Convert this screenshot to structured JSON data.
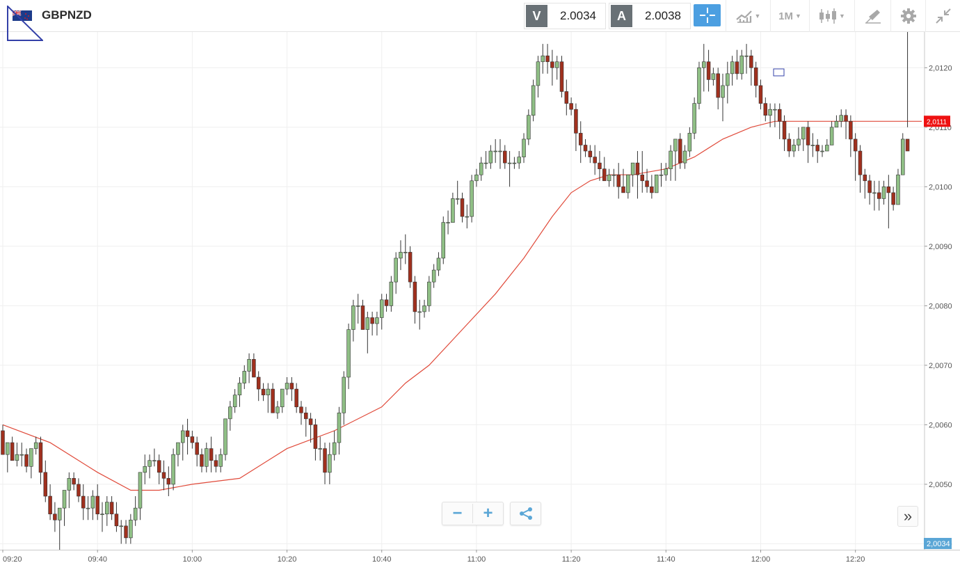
{
  "header": {
    "symbol": "GBPNZD",
    "sell_label": "V",
    "sell_price": "2.0034",
    "buy_label": "A",
    "buy_price": "2.0038",
    "timeframe": "1M",
    "icons": [
      "flag-icon",
      "crosshair-icon",
      "indicator-icon",
      "candlestick-icon",
      "drawing-icon",
      "gear-icon",
      "minimize-icon"
    ]
  },
  "colors": {
    "bull": "#8fbf85",
    "bear": "#a0301e",
    "wick": "#333333",
    "ma": "#e04a3a",
    "current_price_tag": "#ee1111",
    "bid_tag": "#5aa6d6",
    "grid": "#efefef",
    "accent": "#4c9fe1"
  },
  "controls": {
    "zoom_out": "−",
    "zoom_in": "+",
    "share_icon": "share-icon",
    "scroll_end": "»"
  },
  "chart_data": {
    "type": "candlestick",
    "interval": "1M",
    "xlabel": "",
    "ylabel": "",
    "ylim": [
      2.0039,
      2.0126
    ],
    "y_ticks": [
      "2,0040",
      "2,0050",
      "2,0060",
      "2,0070",
      "2,0080",
      "2,0090",
      "2,0100",
      "2,0110",
      "2,0120"
    ],
    "y_tick_values": [
      2.004,
      2.005,
      2.006,
      2.007,
      2.008,
      2.009,
      2.01,
      2.011,
      2.012
    ],
    "x_ticks": [
      "09:20",
      "09:40",
      "10:00",
      "10:20",
      "10:40",
      "11:00",
      "11:20",
      "11:40",
      "12:00",
      "12:20"
    ],
    "x_range": [
      "09:20",
      "12:34"
    ],
    "x_tick_minutes": [
      0,
      20,
      40,
      60,
      80,
      100,
      120,
      140,
      160,
      180
    ],
    "x_range_minutes": [
      0,
      194
    ],
    "current_price_label": "2,0111",
    "current_price": 2.0111,
    "bid_label": "2,0034",
    "bid_value": 2.0034,
    "grid": true,
    "series": [
      {
        "type": "ohlc",
        "o": [
          2.0059,
          2.0055,
          2.0057,
          2.0054,
          2.0055,
          2.0055,
          2.0053,
          2.0056,
          2.0057,
          2.0052,
          2.0048,
          2.0045,
          2.0044,
          2.0046,
          2.0049,
          2.0051,
          2.005,
          2.0048,
          2.0046,
          2.0046,
          2.0048,
          2.0045,
          2.0045,
          2.0047,
          2.0045,
          2.0043,
          2.0043,
          2.0041,
          2.0044,
          2.0046,
          2.0052,
          2.0053,
          2.0054,
          2.0054,
          2.0052,
          2.0051,
          2.005,
          2.0055,
          2.0057,
          2.0059,
          2.0058,
          2.0057,
          2.0055,
          2.0053,
          2.0056,
          2.0054,
          2.0053,
          2.0055,
          2.0061,
          2.0063,
          2.0065,
          2.0067,
          2.0069,
          2.0071,
          2.0068,
          2.0066,
          2.0065,
          2.0066,
          2.0062,
          2.0063,
          2.0066,
          2.0067,
          2.0066,
          2.0063,
          2.0062,
          2.0061,
          2.006,
          2.0056,
          2.0056,
          2.0052,
          2.0055,
          2.0057,
          2.0062,
          2.0068,
          2.0076,
          2.008,
          2.008,
          2.0076,
          2.0078,
          2.0077,
          2.0078,
          2.0081,
          2.008,
          2.0084,
          2.0088,
          2.0089,
          2.0089,
          2.0084,
          2.0079,
          2.0079,
          2.008,
          2.0084,
          2.0086,
          2.0088,
          2.0094,
          2.0094,
          2.0098,
          2.0098,
          2.0095,
          2.0095,
          2.0101,
          2.0102,
          2.0104,
          2.0104,
          2.0106,
          2.0106,
          2.0106,
          2.0104,
          2.0104,
          2.0104,
          2.0105,
          2.0108,
          2.0112,
          2.0117,
          2.0121,
          2.0122,
          2.0121,
          2.012,
          2.0121,
          2.0116,
          2.0114,
          2.0113,
          2.0109,
          2.0107,
          2.0106,
          2.0105,
          2.0104,
          2.0103,
          2.0101,
          2.0102,
          2.0102,
          2.01,
          2.0099,
          2.0102,
          2.0104,
          2.0102,
          2.0101,
          2.01,
          2.0099,
          2.0102,
          2.0102,
          2.0103,
          2.0106,
          2.0108,
          2.0104,
          2.0106,
          2.0109,
          2.0114,
          2.012,
          2.0121,
          2.0118,
          2.0119,
          2.0115,
          2.0117,
          2.0119,
          2.0121,
          2.0119,
          2.0122,
          2.0122,
          2.012,
          2.0117,
          2.0114,
          2.0112,
          2.0113,
          2.0113,
          2.0111,
          2.0108,
          2.0106,
          2.0107,
          2.0108,
          2.011,
          2.0107,
          2.0107,
          2.0106,
          2.0106,
          2.0107,
          2.011,
          2.0111,
          2.0112,
          2.0111,
          2.0108,
          2.0106,
          2.0102,
          2.0101,
          2.0099,
          2.0099,
          2.0098,
          2.01,
          2.0099,
          2.0097,
          2.0102,
          2.0108
        ],
        "h": [
          2.006,
          2.0057,
          2.0058,
          2.0057,
          2.0057,
          2.0056,
          2.0055,
          2.0058,
          2.0058,
          2.0054,
          2.005,
          2.0047,
          2.0046,
          2.0049,
          2.0052,
          2.0052,
          2.0051,
          2.005,
          2.0048,
          2.0049,
          2.005,
          2.0047,
          2.0048,
          2.0048,
          2.0047,
          2.0044,
          2.0044,
          2.0045,
          2.0048,
          2.0052,
          2.0055,
          2.0055,
          2.0056,
          2.0055,
          2.0054,
          2.0053,
          2.0056,
          2.0057,
          2.006,
          2.0061,
          2.0059,
          2.0058,
          2.0056,
          2.0057,
          2.0058,
          2.0055,
          2.0056,
          2.0061,
          2.0064,
          2.0066,
          2.0068,
          2.007,
          2.0072,
          2.0072,
          2.0069,
          2.0067,
          2.0067,
          2.0067,
          2.0064,
          2.0066,
          2.0068,
          2.0068,
          2.0067,
          2.0064,
          2.0063,
          2.0062,
          2.0061,
          2.0058,
          2.0057,
          2.0057,
          2.0059,
          2.0063,
          2.0069,
          2.0077,
          2.0081,
          2.0082,
          2.0081,
          2.0079,
          2.0079,
          2.0079,
          2.0082,
          2.0082,
          2.0085,
          2.0089,
          2.0091,
          2.0092,
          2.009,
          2.0085,
          2.0081,
          2.0081,
          2.0085,
          2.0087,
          2.0089,
          2.0095,
          2.0096,
          2.0099,
          2.0101,
          2.0099,
          2.0097,
          2.0102,
          2.0103,
          2.0105,
          2.0106,
          2.0107,
          2.0108,
          2.0108,
          2.0107,
          2.0106,
          2.0105,
          2.0106,
          2.0109,
          2.0113,
          2.0118,
          2.0122,
          2.0124,
          2.0124,
          2.0123,
          2.0122,
          2.0122,
          2.0118,
          2.0115,
          2.0114,
          2.0111,
          2.0108,
          2.0107,
          2.0107,
          2.0106,
          2.0105,
          2.0103,
          2.0103,
          2.0104,
          2.0103,
          2.0101,
          2.0104,
          2.0106,
          2.0106,
          2.0103,
          2.0102,
          2.0102,
          2.0104,
          2.0104,
          2.0107,
          2.0108,
          2.0109,
          2.0107,
          2.011,
          2.0115,
          2.0121,
          2.0124,
          2.0123,
          2.012,
          2.012,
          2.0119,
          2.0121,
          2.0122,
          2.0123,
          2.0123,
          2.0124,
          2.0123,
          2.0121,
          2.0118,
          2.0115,
          2.0114,
          2.0114,
          2.0114,
          2.0112,
          2.0109,
          2.0108,
          2.011,
          2.011,
          2.0111,
          2.0109,
          2.0108,
          2.0107,
          2.0108,
          2.0111,
          2.0112,
          2.0113,
          2.0113,
          2.0112,
          2.0109,
          2.0107,
          2.0103,
          2.0102,
          2.0101,
          2.0101,
          2.0101,
          2.0102,
          2.01,
          2.0103,
          2.0109,
          2.011
        ],
        "l": [
          2.0055,
          2.0052,
          2.0054,
          2.0053,
          2.0053,
          2.0052,
          2.0051,
          2.0055,
          2.005,
          2.0047,
          2.0044,
          2.0042,
          2.0039,
          2.0043,
          2.0046,
          2.0049,
          2.0047,
          2.0044,
          2.0044,
          2.0044,
          2.0044,
          2.0042,
          2.0043,
          2.0044,
          2.0042,
          2.004,
          2.004,
          2.004,
          2.0043,
          2.0044,
          2.005,
          2.0051,
          2.0053,
          2.005,
          2.0049,
          2.0048,
          2.0049,
          2.0053,
          2.0054,
          2.0055,
          2.0056,
          2.0053,
          2.0052,
          2.0052,
          2.0052,
          2.0052,
          2.0052,
          2.0054,
          2.0059,
          2.0062,
          2.0063,
          2.0066,
          2.0067,
          2.0068,
          2.0064,
          2.0064,
          2.0062,
          2.0062,
          2.0061,
          2.0062,
          2.0065,
          2.0064,
          2.0062,
          2.006,
          2.0058,
          2.0057,
          2.0054,
          2.0054,
          2.005,
          2.005,
          2.0054,
          2.0055,
          2.006,
          2.0066,
          2.0074,
          2.0077,
          2.0076,
          2.0072,
          2.0075,
          2.0075,
          2.0076,
          2.0079,
          2.0079,
          2.0082,
          2.0086,
          2.0087,
          2.0083,
          2.0077,
          2.0076,
          2.0078,
          2.0079,
          2.0083,
          2.0085,
          2.0087,
          2.0092,
          2.0094,
          2.0097,
          2.0094,
          2.0093,
          2.0094,
          2.01,
          2.0101,
          2.0103,
          2.0103,
          2.0104,
          2.0103,
          2.0103,
          2.01,
          2.0103,
          2.0103,
          2.0104,
          2.0107,
          2.0111,
          2.0115,
          2.0119,
          2.0119,
          2.0117,
          2.0118,
          2.0115,
          2.0112,
          2.0112,
          2.0106,
          2.0104,
          2.0105,
          2.0104,
          2.0102,
          2.0101,
          2.0101,
          2.01,
          2.01,
          2.0098,
          2.0099,
          2.0098,
          2.01,
          2.0098,
          2.0099,
          2.0099,
          2.0098,
          2.0099,
          2.01,
          2.0101,
          2.0101,
          2.0101,
          2.0103,
          2.0103,
          2.0105,
          2.0108,
          2.0113,
          2.0116,
          2.0116,
          2.0117,
          2.0113,
          2.0111,
          2.0114,
          2.0117,
          2.0118,
          2.0118,
          2.0119,
          2.0117,
          2.0115,
          2.0113,
          2.0111,
          2.011,
          2.011,
          2.0108,
          2.0106,
          2.0105,
          2.0105,
          2.0106,
          2.0106,
          2.0104,
          2.0105,
          2.0104,
          2.0105,
          2.0106,
          2.011,
          2.0111,
          2.011,
          2.0108,
          2.0105,
          2.0101,
          2.0099,
          2.0098,
          2.0097,
          2.0096,
          2.0096,
          2.0097,
          2.0093,
          2.0096,
          2.0101,
          2.0105
        ],
        "c": [
          2.0055,
          2.0057,
          2.0054,
          2.0055,
          2.0055,
          2.0053,
          2.0056,
          2.0057,
          2.0052,
          2.0048,
          2.0045,
          2.0044,
          2.0046,
          2.0049,
          2.0051,
          2.005,
          2.0048,
          2.0046,
          2.0046,
          2.0048,
          2.0045,
          2.0045,
          2.0047,
          2.0045,
          2.0043,
          2.0043,
          2.0041,
          2.0044,
          2.0046,
          2.0052,
          2.0053,
          2.0054,
          2.0054,
          2.0052,
          2.0051,
          2.005,
          2.0055,
          2.0057,
          2.0059,
          2.0058,
          2.0057,
          2.0055,
          2.0053,
          2.0056,
          2.0054,
          2.0053,
          2.0055,
          2.0061,
          2.0063,
          2.0065,
          2.0067,
          2.0069,
          2.0071,
          2.0068,
          2.0066,
          2.0065,
          2.0066,
          2.0062,
          2.0063,
          2.0066,
          2.0067,
          2.0066,
          2.0063,
          2.0062,
          2.0061,
          2.006,
          2.0056,
          2.0056,
          2.0052,
          2.0055,
          2.0057,
          2.0062,
          2.0068,
          2.0076,
          2.008,
          2.008,
          2.0076,
          2.0078,
          2.0077,
          2.0078,
          2.0081,
          2.008,
          2.0084,
          2.0088,
          2.0089,
          2.0089,
          2.0084,
          2.0079,
          2.0079,
          2.008,
          2.0084,
          2.0086,
          2.0088,
          2.0094,
          2.0094,
          2.0098,
          2.0098,
          2.0095,
          2.0095,
          2.0101,
          2.0102,
          2.0104,
          2.0104,
          2.0106,
          2.0106,
          2.0106,
          2.0104,
          2.0104,
          2.0104,
          2.0105,
          2.0108,
          2.0112,
          2.0117,
          2.0121,
          2.0122,
          2.0121,
          2.012,
          2.0121,
          2.0116,
          2.0114,
          2.0113,
          2.0109,
          2.0107,
          2.0106,
          2.0105,
          2.0104,
          2.0103,
          2.0101,
          2.0102,
          2.0102,
          2.01,
          2.0099,
          2.0102,
          2.0104,
          2.0102,
          2.0101,
          2.01,
          2.0099,
          2.0102,
          2.0102,
          2.0103,
          2.0106,
          2.0108,
          2.0104,
          2.0106,
          2.0109,
          2.0114,
          2.012,
          2.0121,
          2.0118,
          2.0119,
          2.0115,
          2.0117,
          2.0119,
          2.0121,
          2.0119,
          2.0122,
          2.0122,
          2.012,
          2.0117,
          2.0114,
          2.0112,
          2.0113,
          2.0113,
          2.0111,
          2.0108,
          2.0106,
          2.0107,
          2.0108,
          2.011,
          2.0107,
          2.0107,
          2.0106,
          2.0106,
          2.0107,
          2.011,
          2.0111,
          2.0112,
          2.0111,
          2.0108,
          2.0106,
          2.0102,
          2.0101,
          2.0099,
          2.0099,
          2.0098,
          2.01,
          2.0099,
          2.0097,
          2.0102,
          2.0108,
          2.0106
        ]
      },
      {
        "type": "moving-average",
        "minutes": [
          0,
          10,
          20,
          27,
          33,
          40,
          50,
          60,
          70,
          80,
          85,
          90,
          97,
          104,
          110,
          116,
          120,
          124,
          128,
          133,
          140,
          146,
          152,
          158,
          163,
          168,
          172,
          176,
          180,
          185,
          190,
          194
        ],
        "values": [
          2.006,
          2.0057,
          2.0052,
          2.0049,
          2.0049,
          2.005,
          2.0051,
          2.0056,
          2.0059,
          2.0063,
          2.0067,
          2.007,
          2.0076,
          2.0082,
          2.0088,
          2.0095,
          2.0099,
          2.0101,
          2.0102,
          2.0102,
          2.0103,
          2.0105,
          2.0108,
          2.011,
          2.0111,
          2.0111,
          2.0111,
          2.0111,
          2.0111,
          2.0111,
          2.0111,
          2.0111
        ]
      }
    ]
  }
}
